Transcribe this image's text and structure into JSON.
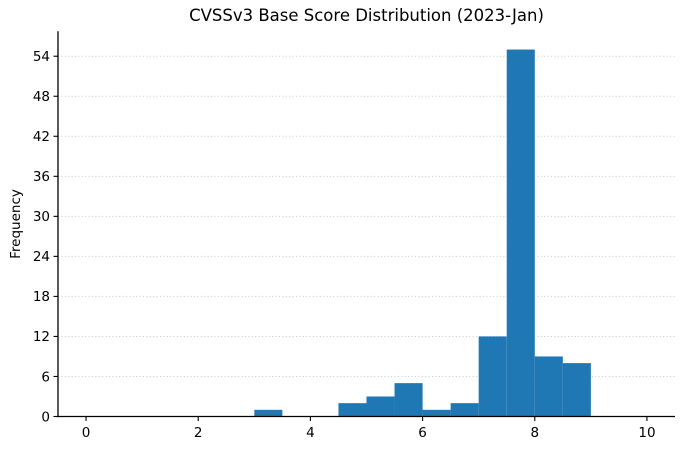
{
  "chart_data": {
    "type": "bar",
    "subtype": "histogram",
    "title": "CVSSv3 Base Score Distribution (2023-Jan)",
    "xlabel": "",
    "ylabel": "Frequency",
    "bin_width": 0.5,
    "bin_edges": [
      0,
      0.5,
      1,
      1.5,
      2,
      2.5,
      3,
      3.5,
      4,
      4.5,
      5,
      5.5,
      6,
      6.5,
      7,
      7.5,
      8,
      8.5,
      9,
      9.5,
      10
    ],
    "counts": [
      0,
      0,
      0,
      0,
      0,
      0,
      1,
      0,
      0,
      2,
      3,
      5,
      1,
      2,
      12,
      55,
      9,
      8,
      0,
      0
    ],
    "xticks": [
      0,
      2,
      4,
      6,
      8,
      10
    ],
    "yticks": [
      0,
      6,
      12,
      18,
      24,
      30,
      36,
      42,
      48,
      54
    ],
    "xlim": [
      -0.5,
      10.5
    ],
    "ylim": [
      0,
      57.75
    ],
    "grid": "horizontal-dotted",
    "legend": "none",
    "bar_color": "#1f77b4",
    "grid_color": "#c9c9c9",
    "axis_color": "#000000",
    "text_color": "#000000"
  }
}
